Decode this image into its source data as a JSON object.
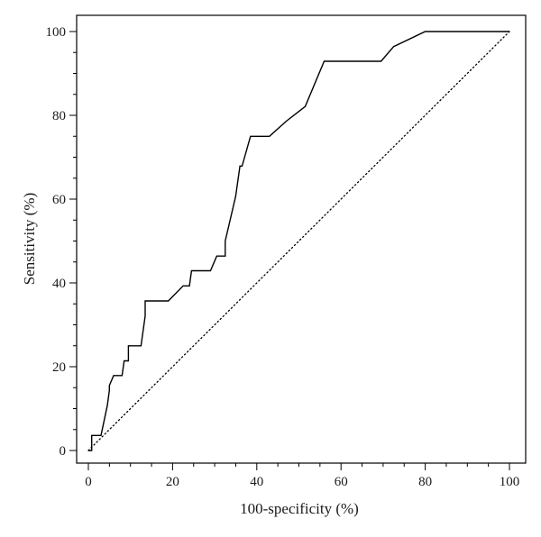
{
  "chart_data": {
    "type": "line",
    "title": "",
    "xlabel": "100-specificity (%)",
    "ylabel": "Sensitivity (%)",
    "xlim": [
      0,
      100
    ],
    "ylim": [
      0,
      100
    ],
    "xticks": [
      0,
      20,
      40,
      60,
      80,
      100
    ],
    "yticks": [
      0,
      20,
      40,
      60,
      80,
      100
    ],
    "xtick_labels": [
      "0",
      "20",
      "40",
      "60",
      "80",
      "100"
    ],
    "ytick_labels": [
      "0",
      "20",
      "40",
      "60",
      "80",
      "100"
    ],
    "grid": false,
    "series": [
      {
        "style": "solid",
        "color": "#000000",
        "x": [
          0,
          0.8,
          0.8,
          3.0,
          4.5,
          5.0,
          5.0,
          6.0,
          8.0,
          8.5,
          9.5,
          9.5,
          12.5,
          13.5,
          13.5,
          19.0,
          22.5,
          24.0,
          24.5,
          25.5,
          29.0,
          30.5,
          32.5,
          32.5,
          35.0,
          36.0,
          36.5,
          38.5,
          39.0,
          43.0,
          47.0,
          51.5,
          56.0,
          69.5,
          72.5,
          80.0,
          100.0
        ],
        "y": [
          0,
          0,
          3.6,
          3.6,
          10.7,
          14.3,
          15.5,
          17.9,
          17.9,
          21.4,
          21.4,
          25.0,
          25.0,
          32.1,
          35.7,
          35.7,
          39.3,
          39.3,
          42.9,
          42.9,
          42.9,
          46.4,
          46.4,
          50.0,
          60.7,
          67.9,
          67.9,
          75.0,
          75.0,
          75.0,
          78.6,
          82.1,
          92.9,
          92.9,
          96.4,
          100.0,
          100.0
        ]
      },
      {
        "style": "dotted",
        "color": "#000000",
        "x": [
          0,
          100
        ],
        "y": [
          0,
          100
        ]
      }
    ]
  }
}
